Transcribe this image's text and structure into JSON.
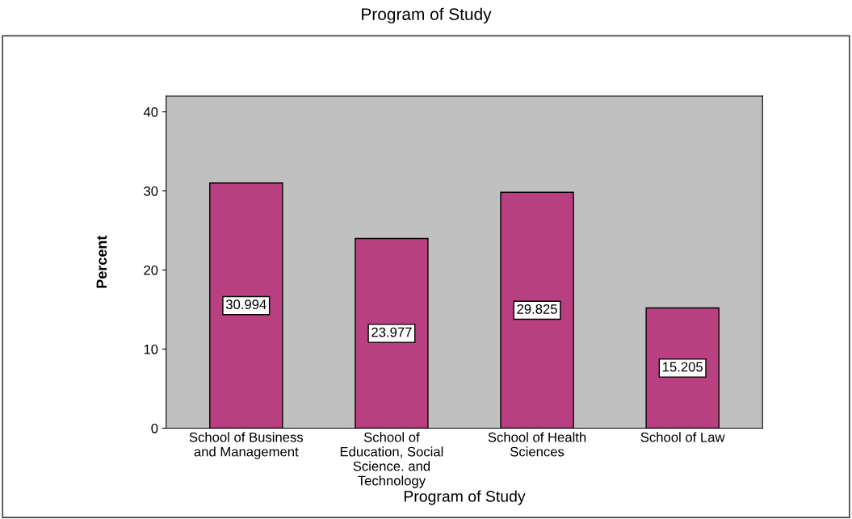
{
  "chart_data": {
    "type": "bar",
    "title": "Program of Study",
    "xlabel": "Program of Study",
    "ylabel": "Percent",
    "categories": [
      "School of Business\nand Management",
      "School of\nEducation, Social\nScience. and\nTechnology",
      "School of Health\nSciences",
      "School of Law"
    ],
    "values": [
      30.994,
      23.977,
      29.825,
      15.205
    ],
    "color": "#b94080",
    "ylim": [
      0,
      42
    ],
    "yticks": [
      0,
      10,
      20,
      30,
      40
    ],
    "grid": false,
    "data_labels": true
  }
}
